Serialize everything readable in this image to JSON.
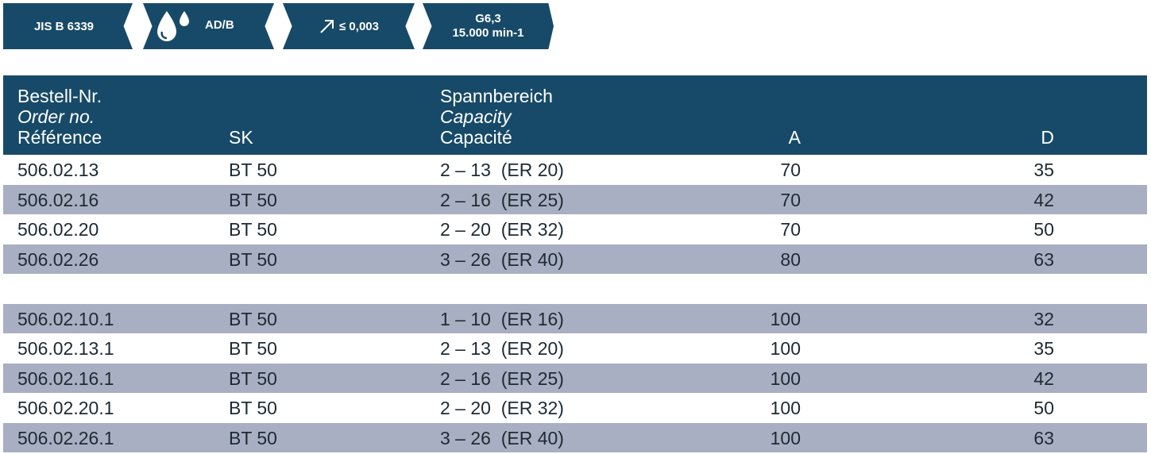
{
  "badges": {
    "standard": "JIS B 6339",
    "coolant_label": "AD/B",
    "coolant_icon": "coolant-drops-icon",
    "runout_icon": "runout-arrow-icon",
    "runout_value": "≤ 0,003",
    "balance_grade": "G6,3",
    "balance_speed": "15.000 min-1",
    "color": "#174a68"
  },
  "table": {
    "header": {
      "col1_de": "Bestell-Nr.",
      "col1_en": "Order no.",
      "col1_fr": "Référence",
      "col2": "SK",
      "col3_de": "Spannbereich",
      "col3_en": "Capacity",
      "col3_fr": "Capacité",
      "colA": "A",
      "colD": "D"
    },
    "rows": [
      {
        "order": "506.02.13",
        "sk": "BT 50",
        "capacity": "2 – 13  (ER 20)",
        "a": "70",
        "d": "35"
      },
      {
        "order": "506.02.16",
        "sk": "BT 50",
        "capacity": "2 – 16  (ER 25)",
        "a": "70",
        "d": "42"
      },
      {
        "order": "506.02.20",
        "sk": "BT 50",
        "capacity": "2 – 20  (ER 32)",
        "a": "70",
        "d": "50"
      },
      {
        "order": "506.02.26",
        "sk": "BT 50",
        "capacity": "3 – 26  (ER 40)",
        "a": "80",
        "d": "63"
      },
      {
        "order": "506.02.10.1",
        "sk": "BT 50",
        "capacity": "1 – 10  (ER 16)",
        "a": "100",
        "d": "32"
      },
      {
        "order": "506.02.13.1",
        "sk": "BT 50",
        "capacity": "2 – 13  (ER 20)",
        "a": "100",
        "d": "35"
      },
      {
        "order": "506.02.16.1",
        "sk": "BT 50",
        "capacity": "2 – 16  (ER 25)",
        "a": "100",
        "d": "42"
      },
      {
        "order": "506.02.20.1",
        "sk": "BT 50",
        "capacity": "2 – 20  (ER 32)",
        "a": "100",
        "d": "50"
      },
      {
        "order": "506.02.26.1",
        "sk": "BT 50",
        "capacity": "3 – 26  (ER 40)",
        "a": "100",
        "d": "63"
      }
    ],
    "header_color": "#174a68",
    "stripe_color": "#a9afc2"
  }
}
